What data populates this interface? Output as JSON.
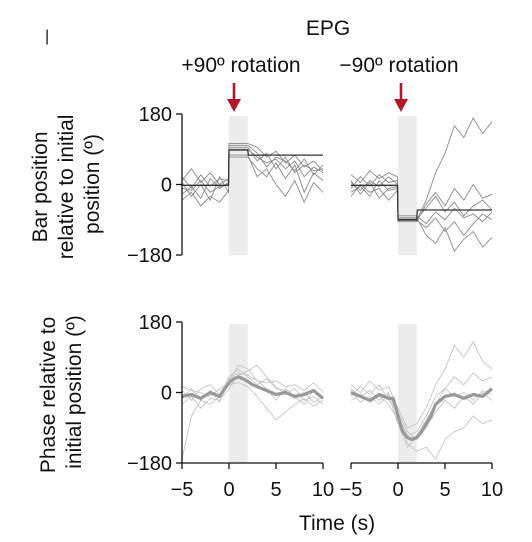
{
  "figure": {
    "title": "EPG",
    "corner_mark": "|",
    "xlabel": "Time (s)"
  },
  "annotations": {
    "left_event": "+90º rotation",
    "right_event": "−90º rotation",
    "arrow_color": "#b0192b"
  },
  "chart_data": [
    {
      "type": "line",
      "id": "bar-left",
      "row": "top",
      "ylabel_lines": [
        "Bar position",
        "relative to initial",
        "position (º)"
      ],
      "xlim": [
        -5,
        10
      ],
      "ylim": [
        -180,
        180
      ],
      "xticks": [],
      "yticks": [
        -180,
        0,
        180
      ],
      "ytick_labels": [
        "−180",
        "0",
        "180"
      ],
      "stim_window": [
        0,
        2
      ],
      "mean": {
        "x": [
          -5,
          -0.05,
          0,
          2.0,
          2.05,
          10
        ],
        "y": [
          -2,
          -2,
          88,
          88,
          75,
          75
        ],
        "color": "#333333"
      },
      "trials": [
        {
          "x": [
            -5,
            -4,
            -3,
            -2,
            -1,
            -0.05,
            0,
            1,
            2,
            3,
            4,
            5,
            6,
            7,
            8,
            9,
            10
          ],
          "y": [
            -10,
            -15,
            10,
            -20,
            -5,
            0,
            90,
            90,
            90,
            70,
            55,
            65,
            40,
            60,
            20,
            45,
            30
          ]
        },
        {
          "x": [
            -5,
            -4,
            -3,
            -2,
            -1,
            -0.05,
            0,
            1,
            2,
            3,
            4,
            5,
            6,
            7,
            8,
            9,
            10
          ],
          "y": [
            -25,
            -5,
            -35,
            15,
            -10,
            5,
            95,
            95,
            95,
            60,
            80,
            40,
            70,
            30,
            50,
            35,
            40
          ]
        },
        {
          "x": [
            -5,
            -4,
            -3,
            -2,
            -1,
            -0.05,
            0,
            1,
            2,
            3,
            4,
            5,
            6,
            7,
            8,
            9,
            10
          ],
          "y": [
            5,
            -30,
            0,
            -40,
            20,
            -20,
            70,
            70,
            70,
            40,
            20,
            55,
            15,
            50,
            -20,
            30,
            10
          ]
        },
        {
          "x": [
            -5,
            -4,
            -3,
            -2,
            -1,
            -0.05,
            0,
            1,
            2,
            3,
            4,
            5,
            6,
            7,
            8,
            9,
            10
          ],
          "y": [
            20,
            -10,
            25,
            -5,
            15,
            10,
            100,
            100,
            100,
            80,
            45,
            70,
            60,
            35,
            65,
            25,
            50
          ]
        },
        {
          "x": [
            -5,
            -4,
            -3,
            -2,
            -1,
            -0.05,
            0,
            1,
            2,
            3,
            4,
            5,
            6,
            7,
            8,
            9,
            10
          ],
          "y": [
            -40,
            -20,
            -55,
            -30,
            -45,
            -15,
            75,
            75,
            75,
            20,
            40,
            0,
            -30,
            10,
            -45,
            5,
            -20
          ]
        },
        {
          "x": [
            -5,
            -4,
            -3,
            -2,
            -1,
            -0.05,
            0,
            1,
            2,
            3,
            4,
            5,
            6,
            7,
            8,
            9,
            10
          ],
          "y": [
            10,
            40,
            5,
            30,
            0,
            15,
            105,
            105,
            105,
            95,
            70,
            85,
            55,
            75,
            45,
            60,
            35
          ]
        }
      ]
    },
    {
      "type": "line",
      "id": "bar-right",
      "row": "top",
      "xlim": [
        -5,
        10
      ],
      "ylim": [
        -180,
        180
      ],
      "xticks": [],
      "yticks": [],
      "stim_window": [
        0,
        2
      ],
      "mean": {
        "x": [
          -5,
          -0.05,
          0,
          2.0,
          2.05,
          10
        ],
        "y": [
          -2,
          -2,
          -90,
          -90,
          -65,
          -65
        ],
        "color": "#333333"
      },
      "trials": [
        {
          "x": [
            -5,
            -4,
            -3,
            -2,
            -1,
            -0.05,
            0,
            1,
            2,
            3,
            4,
            5,
            6,
            7,
            8,
            9,
            10
          ],
          "y": [
            5,
            -15,
            10,
            -5,
            20,
            0,
            -88,
            -88,
            -88,
            -60,
            -30,
            -70,
            -45,
            -80,
            -55,
            -40,
            -65
          ]
        },
        {
          "x": [
            -5,
            -4,
            -3,
            -2,
            -1,
            -0.05,
            0,
            1,
            2,
            3,
            4,
            5,
            6,
            7,
            8,
            9,
            10
          ],
          "y": [
            -20,
            -5,
            -30,
            10,
            -15,
            -10,
            -92,
            -92,
            -92,
            -110,
            -85,
            -120,
            -95,
            -130,
            -100,
            -75,
            -90
          ]
        },
        {
          "x": [
            -5,
            -4,
            -3,
            -2,
            -1,
            -0.05,
            0,
            1,
            2,
            3,
            4,
            5,
            6,
            7,
            8,
            9,
            10
          ],
          "y": [
            25,
            5,
            35,
            15,
            30,
            20,
            -95,
            -95,
            -95,
            -50,
            -20,
            -55,
            -10,
            -40,
            0,
            -35,
            -25
          ]
        },
        {
          "x": [
            -5,
            -4,
            -3,
            -2,
            -1,
            -0.05,
            0,
            1,
            2,
            3,
            4,
            5,
            6,
            7,
            8,
            9,
            10
          ],
          "y": [
            -10,
            20,
            -5,
            25,
            5,
            10,
            -85,
            -85,
            -85,
            -130,
            -150,
            -110,
            -170,
            -140,
            -120,
            -160,
            -135
          ]
        },
        {
          "x": [
            -5,
            -4,
            -3,
            -2,
            -1,
            -0.05,
            0,
            1,
            2,
            3,
            4,
            5,
            6,
            7,
            8,
            9,
            10
          ],
          "y": [
            10,
            -25,
            5,
            -35,
            -10,
            -5,
            -90,
            -90,
            -90,
            -40,
            30,
            80,
            150,
            120,
            170,
            130,
            160
          ]
        },
        {
          "x": [
            -5,
            -4,
            -3,
            -2,
            -1,
            -0.05,
            0,
            1,
            2,
            3,
            4,
            5,
            6,
            7,
            8,
            9,
            10
          ],
          "y": [
            -30,
            0,
            -20,
            -10,
            -40,
            -15,
            -80,
            -80,
            -80,
            -100,
            -70,
            -90,
            -60,
            -85,
            -75,
            -95,
            -70
          ]
        }
      ]
    },
    {
      "type": "line",
      "id": "phase-left",
      "row": "bottom",
      "ylabel_lines": [
        "Phase relative to",
        "initial position (º)"
      ],
      "xlim": [
        -5,
        10
      ],
      "ylim": [
        -180,
        180
      ],
      "xticks": [
        -5,
        0,
        5,
        10
      ],
      "xtick_labels": [
        "−5",
        "0",
        "5",
        "10"
      ],
      "yticks": [
        -180,
        0,
        180
      ],
      "ytick_labels": [
        "−180",
        "0",
        "180"
      ],
      "stim_window": [
        0,
        2
      ],
      "mean": {
        "x": [
          -5,
          -4,
          -3,
          -2,
          -1,
          0,
          0.5,
          1,
          1.5,
          2,
          2.5,
          3,
          3.5,
          4,
          5,
          6,
          7,
          8,
          9,
          10
        ],
        "y": [
          -10,
          -5,
          -15,
          0,
          -10,
          25,
          35,
          40,
          35,
          28,
          20,
          15,
          10,
          5,
          -5,
          0,
          -10,
          -5,
          5,
          -15
        ],
        "color": "#999999"
      },
      "trials": [
        {
          "x": [
            -5,
            -4,
            -3,
            -2,
            -1,
            0,
            1,
            2,
            3,
            4,
            5,
            6,
            7,
            8,
            9,
            10
          ],
          "y": [
            -170,
            -60,
            -20,
            -30,
            -10,
            30,
            70,
            60,
            30,
            10,
            -20,
            10,
            -10,
            -30,
            5,
            -15
          ]
        },
        {
          "x": [
            -5,
            -4,
            -3,
            -2,
            -1,
            0,
            1,
            2,
            3,
            4,
            5,
            6,
            7,
            8,
            9,
            10
          ],
          "y": [
            5,
            -20,
            10,
            20,
            -5,
            40,
            60,
            40,
            20,
            35,
            10,
            5,
            -15,
            0,
            -25,
            -10
          ]
        },
        {
          "x": [
            -5,
            -4,
            -3,
            -2,
            -1,
            0,
            1,
            2,
            3,
            4,
            5,
            6,
            7,
            8,
            9,
            10
          ],
          "y": [
            -30,
            -10,
            -40,
            -15,
            -20,
            10,
            45,
            55,
            70,
            40,
            15,
            -5,
            10,
            -20,
            -10,
            -30
          ]
        },
        {
          "x": [
            -5,
            -4,
            -3,
            -2,
            -1,
            0,
            1,
            2,
            3,
            4,
            5,
            6,
            7,
            8,
            9,
            10
          ],
          "y": [
            15,
            5,
            0,
            -10,
            10,
            20,
            25,
            15,
            -10,
            -40,
            -70,
            -50,
            -30,
            -15,
            -35,
            -20
          ]
        },
        {
          "x": [
            -5,
            -4,
            -3,
            -2,
            -1,
            0,
            1,
            2,
            3,
            4,
            5,
            6,
            7,
            8,
            9,
            10
          ],
          "y": [
            -15,
            10,
            -20,
            5,
            -25,
            35,
            50,
            45,
            30,
            25,
            30,
            15,
            20,
            5,
            25,
            0
          ]
        }
      ]
    },
    {
      "type": "line",
      "id": "phase-right",
      "row": "bottom",
      "xlim": [
        -5,
        10
      ],
      "ylim": [
        -180,
        180
      ],
      "xticks": [
        -5,
        0,
        5,
        10
      ],
      "xtick_labels": [
        "−5",
        "0",
        "5",
        "10"
      ],
      "yticks": [],
      "stim_window": [
        0,
        2
      ],
      "mean": {
        "x": [
          -5,
          -4,
          -3,
          -2,
          -1,
          -0.5,
          0,
          0.5,
          1,
          1.5,
          2,
          2.5,
          3,
          3.5,
          4,
          5,
          6,
          7,
          8,
          9,
          10
        ],
        "y": [
          0,
          -10,
          -20,
          -5,
          -15,
          -15,
          -60,
          -100,
          -115,
          -120,
          -115,
          -100,
          -80,
          -60,
          -30,
          -10,
          -5,
          -15,
          -5,
          -10,
          10
        ],
        "color": "#999999"
      },
      "trials": [
        {
          "x": [
            -5,
            -4,
            -3,
            -2,
            -1,
            0,
            1,
            2,
            3,
            4,
            5,
            6,
            7,
            8,
            9,
            10
          ],
          "y": [
            10,
            -10,
            5,
            -20,
            0,
            -60,
            -110,
            -100,
            -60,
            -10,
            10,
            -10,
            0,
            -20,
            5,
            -5
          ]
        },
        {
          "x": [
            -5,
            -4,
            -3,
            -2,
            -1,
            0,
            1,
            2,
            3,
            4,
            5,
            6,
            7,
            8,
            9,
            10
          ],
          "y": [
            -20,
            -5,
            -25,
            -10,
            -30,
            -70,
            -130,
            -150,
            -140,
            -170,
            -120,
            -100,
            -90,
            -60,
            -80,
            -70
          ]
        },
        {
          "x": [
            -5,
            -4,
            -3,
            -2,
            -1,
            0,
            1,
            2,
            3,
            4,
            5,
            6,
            7,
            8,
            9,
            10
          ],
          "y": [
            20,
            0,
            30,
            5,
            15,
            -40,
            -90,
            -80,
            -40,
            20,
            60,
            120,
            90,
            130,
            80,
            60
          ]
        },
        {
          "x": [
            -5,
            -4,
            -3,
            -2,
            -1,
            0,
            1,
            2,
            3,
            4,
            5,
            6,
            7,
            8,
            9,
            10
          ],
          "y": [
            -10,
            15,
            -5,
            20,
            -20,
            -50,
            -100,
            -120,
            -90,
            -50,
            -20,
            -40,
            -10,
            -30,
            0,
            -20
          ]
        },
        {
          "x": [
            -5,
            -4,
            -3,
            -2,
            -1,
            0,
            1,
            2,
            3,
            4,
            5,
            6,
            7,
            8,
            9,
            10
          ],
          "y": [
            5,
            -25,
            -10,
            -30,
            -5,
            -80,
            -140,
            -110,
            -70,
            -30,
            10,
            40,
            20,
            50,
            30,
            40
          ]
        }
      ]
    }
  ]
}
